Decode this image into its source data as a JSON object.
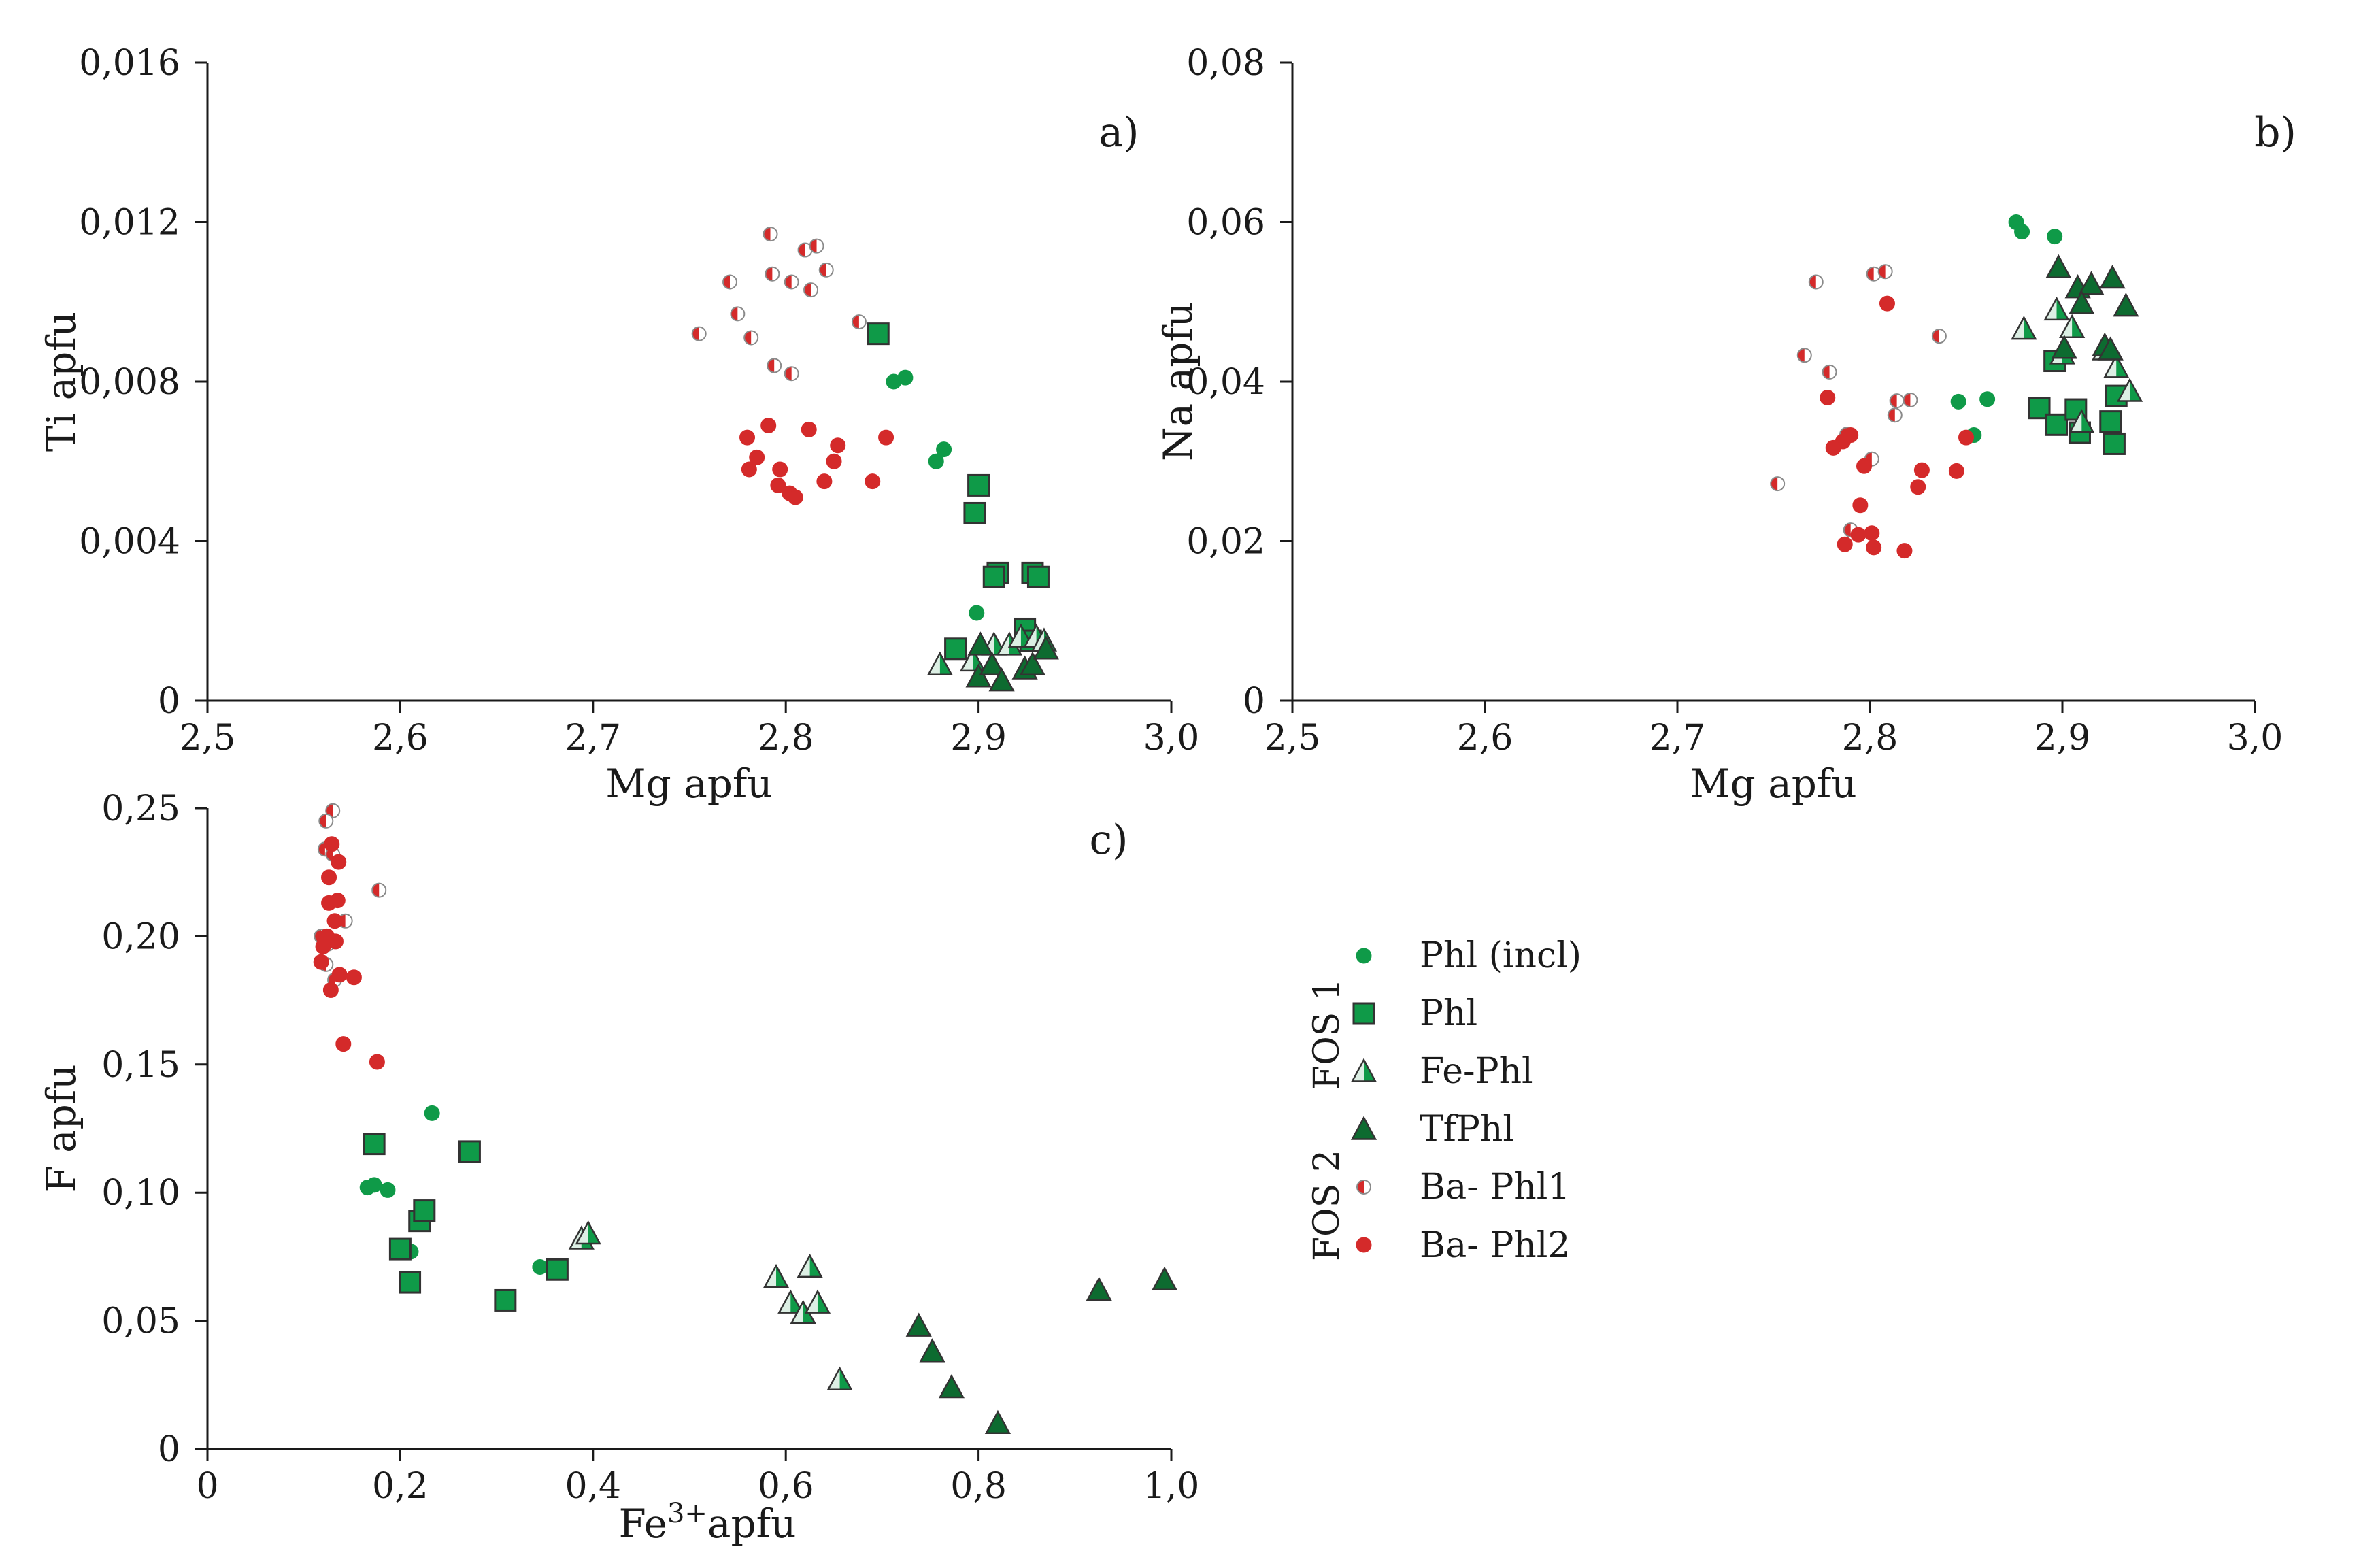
{
  "legend": {
    "items": [
      {
        "key": "phl_incl",
        "label": "Phl (incl)",
        "marker": "circle-green"
      },
      {
        "key": "phl",
        "label": "Phl",
        "marker": "square-green"
      },
      {
        "key": "fe_phl",
        "label": "Fe-Phl",
        "marker": "triangle-half"
      },
      {
        "key": "tfphl",
        "label": "TfPhl",
        "marker": "triangle-green"
      },
      {
        "key": "ba_phl1",
        "label": "Ba- Phl1",
        "marker": "circle-half"
      },
      {
        "key": "ba_phl2",
        "label": "Ba- Phl2",
        "marker": "circle-red"
      }
    ],
    "groups": [
      {
        "label": "FOS 1",
        "items": [
          "phl_incl",
          "phl",
          "fe_phl",
          "tfphl"
        ]
      },
      {
        "label": "FOS 2",
        "items": [
          "ba_phl1",
          "ba_phl2"
        ]
      }
    ]
  },
  "colors": {
    "green": "#0f9a48",
    "dark_green": "#0d6b30",
    "red": "#d42a2a",
    "light_fill": "#dcefe4",
    "white": "#ffffff",
    "outline": "#333333",
    "axis": "#1a1a1a"
  },
  "chart_data": [
    {
      "id": "a",
      "type": "scatter",
      "panel_label": "a)",
      "xlabel": "Mg apfu",
      "ylabel": "Ti apfu",
      "xlim": [
        2.5,
        3.0
      ],
      "ylim": [
        0,
        0.016
      ],
      "xticks": [
        2.5,
        2.6,
        2.7,
        2.8,
        2.9,
        3.0
      ],
      "xtick_labels": [
        "2,5",
        "2,6",
        "2,7",
        "2,8",
        "2,9",
        "3,0"
      ],
      "yticks": [
        0,
        0.004,
        0.008,
        0.012,
        0.016
      ],
      "ytick_labels": [
        "0",
        "0,004",
        "0,008",
        "0,012",
        "0,016"
      ],
      "series": [
        {
          "name": "Phl (incl)",
          "marker": "circle-green",
          "points": [
            [
              2.856,
              0.008
            ],
            [
              2.862,
              0.0081
            ],
            [
              2.878,
              0.006
            ],
            [
              2.882,
              0.0063
            ],
            [
              2.899,
              0.0022
            ]
          ]
        },
        {
          "name": "Phl",
          "marker": "square-green",
          "points": [
            [
              2.848,
              0.0092
            ],
            [
              2.9,
              0.0054
            ],
            [
              2.898,
              0.0047
            ],
            [
              2.91,
              0.0032
            ],
            [
              2.908,
              0.0031
            ],
            [
              2.928,
              0.0032
            ],
            [
              2.931,
              0.0031
            ],
            [
              2.888,
              0.0013
            ],
            [
              2.924,
              0.0018
            ],
            [
              2.927,
              0.0015
            ]
          ]
        },
        {
          "name": "Fe-Phl",
          "marker": "triangle-half",
          "points": [
            [
              2.88,
              0.0009
            ],
            [
              2.897,
              0.001
            ],
            [
              2.908,
              0.0014
            ],
            [
              2.916,
              0.0014
            ],
            [
              2.922,
              0.0016
            ],
            [
              2.93,
              0.0016
            ],
            [
              2.934,
              0.0015
            ]
          ]
        },
        {
          "name": "TfPhl",
          "marker": "triangle-green",
          "points": [
            [
              2.9,
              0.0006
            ],
            [
              2.907,
              0.0009
            ],
            [
              2.912,
              0.0005
            ],
            [
              2.924,
              0.0008
            ],
            [
              2.928,
              0.0009
            ],
            [
              2.935,
              0.0013
            ],
            [
              2.901,
              0.0014
            ]
          ]
        },
        {
          "name": "Ba- Phl1",
          "marker": "circle-half",
          "points": [
            [
              2.792,
              0.0117
            ],
            [
              2.81,
              0.0113
            ],
            [
              2.816,
              0.0114
            ],
            [
              2.821,
              0.0108
            ],
            [
              2.771,
              0.0105
            ],
            [
              2.793,
              0.0107
            ],
            [
              2.803,
              0.0105
            ],
            [
              2.813,
              0.0103
            ],
            [
              2.775,
              0.0097
            ],
            [
              2.755,
              0.0092
            ],
            [
              2.782,
              0.0091
            ],
            [
              2.838,
              0.0095
            ],
            [
              2.794,
              0.0084
            ],
            [
              2.803,
              0.0082
            ]
          ]
        },
        {
          "name": "Ba- Phl2",
          "marker": "circle-red",
          "points": [
            [
              2.791,
              0.0069
            ],
            [
              2.78,
              0.0066
            ],
            [
              2.812,
              0.0068
            ],
            [
              2.785,
              0.0061
            ],
            [
              2.781,
              0.0058
            ],
            [
              2.797,
              0.0058
            ],
            [
              2.796,
              0.0054
            ],
            [
              2.802,
              0.0052
            ],
            [
              2.805,
              0.0051
            ],
            [
              2.82,
              0.0055
            ],
            [
              2.825,
              0.006
            ],
            [
              2.827,
              0.0064
            ],
            [
              2.852,
              0.0066
            ],
            [
              2.845,
              0.0055
            ]
          ]
        }
      ]
    },
    {
      "id": "b",
      "type": "scatter",
      "panel_label": "b)",
      "xlabel": "Mg apfu",
      "ylabel": "Na apfu",
      "xlim": [
        2.5,
        3.0
      ],
      "ylim": [
        0,
        0.08
      ],
      "xticks": [
        2.5,
        2.6,
        2.7,
        2.8,
        2.9,
        3.0
      ],
      "xtick_labels": [
        "2,5",
        "2,6",
        "2,7",
        "2,8",
        "2,9",
        "3,0"
      ],
      "yticks": [
        0,
        0.02,
        0.04,
        0.06,
        0.08
      ],
      "ytick_labels": [
        "0",
        "0,02",
        "0,04",
        "0,06",
        "0,08"
      ],
      "series": [
        {
          "name": "Phl (incl)",
          "marker": "circle-green",
          "points": [
            [
              2.876,
              0.06
            ],
            [
              2.879,
              0.0588
            ],
            [
              2.896,
              0.0582
            ],
            [
              2.846,
              0.0375
            ],
            [
              2.861,
              0.0378
            ],
            [
              2.854,
              0.0333
            ]
          ]
        },
        {
          "name": "Phl",
          "marker": "square-green",
          "points": [
            [
              2.888,
              0.0367
            ],
            [
              2.896,
              0.0426
            ],
            [
              2.897,
              0.0346
            ],
            [
              2.907,
              0.0365
            ],
            [
              2.909,
              0.0336
            ],
            [
              2.925,
              0.035
            ],
            [
              2.928,
              0.0382
            ],
            [
              2.927,
              0.0322
            ]
          ]
        },
        {
          "name": "Fe-Phl",
          "marker": "triangle-half",
          "points": [
            [
              2.88,
              0.0466
            ],
            [
              2.897,
              0.049
            ],
            [
              2.905,
              0.0468
            ],
            [
              2.91,
              0.0349
            ],
            [
              2.922,
              0.044
            ],
            [
              2.928,
              0.0418
            ],
            [
              2.935,
              0.0388
            ],
            [
              2.9,
              0.0435
            ]
          ]
        },
        {
          "name": "TfPhl",
          "marker": "triangle-green",
          "points": [
            [
              2.898,
              0.0543
            ],
            [
              2.908,
              0.0518
            ],
            [
              2.915,
              0.0522
            ],
            [
              2.926,
              0.053
            ],
            [
              2.933,
              0.0495
            ],
            [
              2.91,
              0.0498
            ],
            [
              2.922,
              0.0445
            ],
            [
              2.925,
              0.044
            ],
            [
              2.901,
              0.0442
            ]
          ]
        },
        {
          "name": "Ba- Phl1",
          "marker": "circle-half",
          "points": [
            [
              2.772,
              0.0525
            ],
            [
              2.802,
              0.0535
            ],
            [
              2.808,
              0.0538
            ],
            [
              2.766,
              0.0433
            ],
            [
              2.779,
              0.0412
            ],
            [
              2.836,
              0.0457
            ],
            [
              2.814,
              0.0376
            ],
            [
              2.821,
              0.0377
            ],
            [
              2.813,
              0.0358
            ],
            [
              2.788,
              0.0334
            ],
            [
              2.801,
              0.0303
            ],
            [
              2.752,
              0.0272
            ],
            [
              2.79,
              0.0214
            ]
          ]
        },
        {
          "name": "Ba- Phl2",
          "marker": "circle-red",
          "points": [
            [
              2.809,
              0.0498
            ],
            [
              2.778,
              0.038
            ],
            [
              2.786,
              0.0325
            ],
            [
              2.781,
              0.0317
            ],
            [
              2.79,
              0.0333
            ],
            [
              2.797,
              0.0294
            ],
            [
              2.827,
              0.0289
            ],
            [
              2.825,
              0.0268
            ],
            [
              2.845,
              0.0288
            ],
            [
              2.85,
              0.033
            ],
            [
              2.795,
              0.0245
            ],
            [
              2.794,
              0.0208
            ],
            [
              2.801,
              0.021
            ],
            [
              2.787,
              0.0196
            ],
            [
              2.802,
              0.0192
            ],
            [
              2.818,
              0.0188
            ]
          ]
        }
      ]
    },
    {
      "id": "c",
      "type": "scatter",
      "panel_label": "c)",
      "xlabel": "Fe",
      "xlabel_sup": "3+",
      "xlabel_rest": "apfu",
      "ylabel": "F apfu",
      "xlim": [
        0,
        1.0
      ],
      "ylim": [
        0,
        0.25
      ],
      "xticks": [
        0,
        0.2,
        0.4,
        0.6,
        0.8,
        1.0
      ],
      "xtick_labels": [
        "0",
        "0,2",
        "0,4",
        "0,6",
        "0,8",
        "1,0"
      ],
      "yticks": [
        0,
        0.05,
        0.1,
        0.15,
        0.2,
        0.25
      ],
      "ytick_labels": [
        "0",
        "0,05",
        "0,10",
        "0,15",
        "0,20",
        "0,25"
      ],
      "series": [
        {
          "name": "Phl (incl)",
          "marker": "circle-green",
          "points": [
            [
              0.233,
              0.131
            ],
            [
              0.166,
              0.102
            ],
            [
              0.173,
              0.103
            ],
            [
              0.187,
              0.101
            ],
            [
              0.211,
              0.077
            ],
            [
              0.345,
              0.071
            ]
          ]
        },
        {
          "name": "Phl",
          "marker": "square-green",
          "points": [
            [
              0.173,
              0.119
            ],
            [
              0.272,
              0.116
            ],
            [
              0.22,
              0.089
            ],
            [
              0.225,
              0.093
            ],
            [
              0.2,
              0.078
            ],
            [
              0.21,
              0.065
            ],
            [
              0.309,
              0.058
            ],
            [
              0.363,
              0.07
            ]
          ]
        },
        {
          "name": "Fe-Phl",
          "marker": "triangle-half",
          "points": [
            [
              0.388,
              0.082
            ],
            [
              0.395,
              0.084
            ],
            [
              0.59,
              0.067
            ],
            [
              0.605,
              0.057
            ],
            [
              0.618,
              0.053
            ],
            [
              0.625,
              0.071
            ],
            [
              0.633,
              0.057
            ],
            [
              0.656,
              0.027
            ]
          ]
        },
        {
          "name": "TfPhl",
          "marker": "triangle-green",
          "points": [
            [
              0.738,
              0.048
            ],
            [
              0.752,
              0.038
            ],
            [
              0.772,
              0.024
            ],
            [
              0.82,
              0.01
            ],
            [
              0.925,
              0.062
            ],
            [
              0.993,
              0.066
            ]
          ]
        },
        {
          "name": "Ba- Phl1",
          "marker": "circle-half",
          "points": [
            [
              0.13,
              0.249
            ],
            [
              0.123,
              0.245
            ],
            [
              0.122,
              0.234
            ],
            [
              0.13,
              0.232
            ],
            [
              0.178,
              0.218
            ],
            [
              0.118,
              0.2
            ],
            [
              0.143,
              0.206
            ],
            [
              0.125,
              0.197
            ],
            [
              0.123,
              0.189
            ],
            [
              0.132,
              0.183
            ]
          ]
        },
        {
          "name": "Ba- Phl2",
          "marker": "circle-red",
          "points": [
            [
              0.129,
              0.236
            ],
            [
              0.136,
              0.229
            ],
            [
              0.126,
              0.223
            ],
            [
              0.135,
              0.214
            ],
            [
              0.126,
              0.213
            ],
            [
              0.132,
              0.206
            ],
            [
              0.133,
              0.198
            ],
            [
              0.124,
              0.2
            ],
            [
              0.118,
              0.19
            ],
            [
              0.137,
              0.185
            ],
            [
              0.152,
              0.184
            ],
            [
              0.128,
              0.179
            ],
            [
              0.141,
              0.158
            ],
            [
              0.176,
              0.151
            ],
            [
              0.12,
              0.196
            ]
          ]
        }
      ]
    }
  ]
}
